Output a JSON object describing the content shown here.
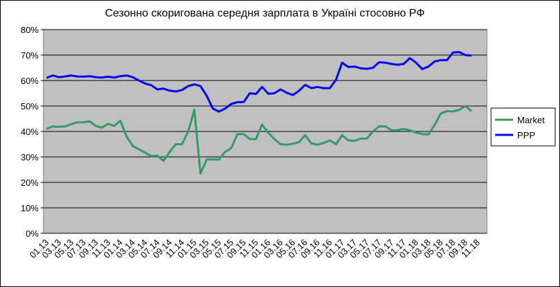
{
  "chart_data": {
    "type": "line",
    "title": "Сезонно скоригована середня зарплата в Україні стосовно РФ",
    "categories": [
      "01.13",
      null,
      "03.13",
      null,
      "05.13",
      null,
      "07.13",
      null,
      "09.13",
      null,
      "11.13",
      null,
      "01.14",
      null,
      "03.14",
      null,
      "05.14",
      null,
      "07.14",
      null,
      "09.14",
      null,
      "11.14",
      null,
      "01.15",
      null,
      "03.15",
      null,
      "05.15",
      null,
      "07.15",
      null,
      "09.15",
      null,
      "11.15",
      null,
      "01.16",
      null,
      "03.16",
      null,
      "05.16",
      null,
      "07.16",
      null,
      "09.16",
      null,
      "11.16",
      null,
      "01.17",
      null,
      "03.17",
      null,
      "05.17",
      null,
      "07.17",
      null,
      "09.17",
      null,
      "11.17",
      null,
      "01.18",
      null,
      "03.18",
      null,
      "05.18",
      null,
      "07.18",
      null,
      "09.18",
      null,
      "11.18",
      null
    ],
    "series": [
      {
        "name": "Market",
        "color": "#339966",
        "values": [
          41,
          42,
          41.8,
          42,
          42.8,
          43.6,
          43.6,
          44,
          42.2,
          41.5,
          43,
          42.2,
          44.2,
          38,
          34.3,
          33,
          31.7,
          30.3,
          30.5,
          28.5,
          32,
          35,
          35,
          40,
          48.5,
          23.5,
          29,
          29,
          29,
          32,
          33.5,
          39,
          39,
          37,
          37,
          42.7,
          39.5,
          37,
          35,
          34.8,
          35.2,
          35.8,
          38.5,
          35.3,
          34.8,
          35.5,
          36.5,
          35,
          38.5,
          36.5,
          36.3,
          37.2,
          37.2,
          40,
          42,
          42,
          40.5,
          40.5,
          41,
          40.5,
          39.5,
          39,
          38.8,
          42.5,
          47,
          48,
          47.8,
          48.5,
          50,
          48,
          null,
          null
        ]
      },
      {
        "name": "PPP",
        "color": "#0000ff",
        "values": [
          61,
          62,
          61.3,
          61.6,
          62,
          61.6,
          61.5,
          61.7,
          61.3,
          61.2,
          61.5,
          61.2,
          61.7,
          62,
          61.3,
          60,
          58.8,
          58.2,
          56.5,
          56.8,
          56,
          55.7,
          56.3,
          57.8,
          58.5,
          57.8,
          54,
          49,
          47.8,
          49,
          50.8,
          51.5,
          51.5,
          55,
          54.7,
          57.5,
          54.8,
          55,
          56.5,
          55.2,
          54.3,
          56,
          58.3,
          57,
          57.5,
          57,
          57,
          60.3,
          67,
          65.3,
          65.5,
          64.8,
          64.6,
          65,
          67.2,
          67,
          66.5,
          66.2,
          66.5,
          68.8,
          67,
          64.5,
          65.5,
          67.5,
          68,
          68,
          71,
          71.2,
          70,
          69.8,
          null,
          null
        ]
      }
    ],
    "ylim": [
      0,
      80
    ],
    "yticks": [
      {
        "value": 0,
        "label": "0%"
      },
      {
        "value": 10,
        "label": "10%"
      },
      {
        "value": 20,
        "label": "20%"
      },
      {
        "value": 30,
        "label": "30%"
      },
      {
        "value": 40,
        "label": "40%"
      },
      {
        "value": 50,
        "label": "50%"
      },
      {
        "value": 60,
        "label": "60%"
      },
      {
        "value": 70,
        "label": "70%"
      },
      {
        "value": 80,
        "label": "80%"
      }
    ],
    "grid": true,
    "legend": "right"
  }
}
